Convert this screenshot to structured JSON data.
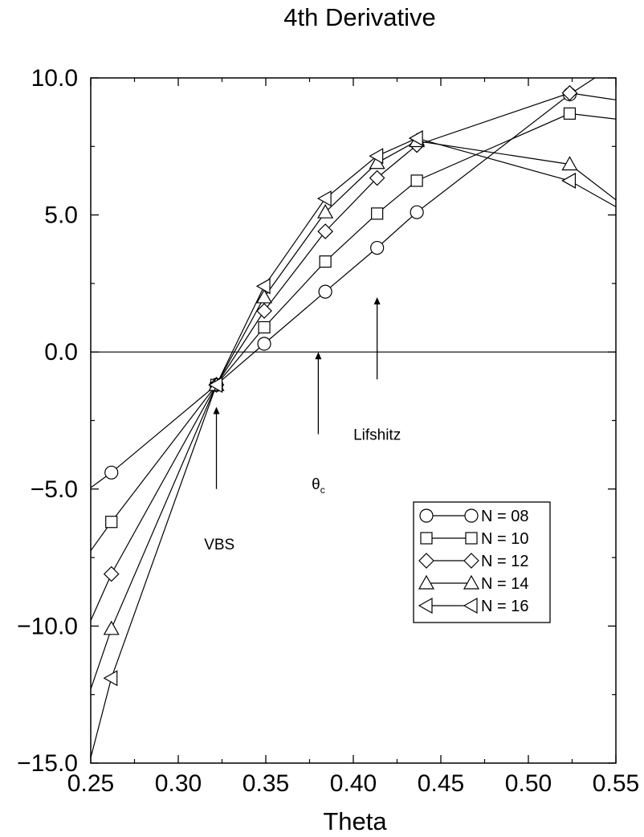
{
  "chart_data": {
    "type": "line",
    "title": "4th Derivative",
    "xlabel": "Theta",
    "ylabel": "",
    "xlim": [
      0.25,
      0.55
    ],
    "ylim": [
      -15.0,
      10.0
    ],
    "xticks": [
      0.25,
      0.3,
      0.35,
      0.4,
      0.45,
      0.5,
      0.55
    ],
    "xtick_labels": [
      "0.25",
      "0.30",
      "0.35",
      "0.40",
      "0.45",
      "0.50",
      "0.55"
    ],
    "yticks": [
      -15.0,
      -10.0,
      -5.0,
      0.0,
      5.0,
      10.0
    ],
    "ytick_labels": [
      "−15.0",
      "−10.0",
      "−5.0",
      "0.0",
      "5.0",
      "10.0"
    ],
    "grid": false,
    "legend_position": "right",
    "reference_line_y": 0.0,
    "series": [
      {
        "name": "N = 08",
        "marker": "circle",
        "x": [
          0.2618,
          0.3218,
          0.3491,
          0.384,
          0.4136,
          0.4363,
          0.5236
        ],
        "y": [
          -4.4,
          -1.2,
          0.3,
          2.2,
          3.8,
          5.1,
          9.4
        ],
        "line_extends_to": [
          [
            0.25,
            -4.95
          ],
          [
            0.55,
            10.5
          ]
        ]
      },
      {
        "name": "N = 10",
        "marker": "square",
        "x": [
          0.2618,
          0.3218,
          0.3491,
          0.384,
          0.4136,
          0.4363,
          0.5236
        ],
        "y": [
          -6.2,
          -1.2,
          0.9,
          3.3,
          5.05,
          6.25,
          8.7
        ],
        "line_extends_to": [
          [
            0.25,
            -7.25
          ],
          [
            0.55,
            8.5
          ]
        ]
      },
      {
        "name": "N = 12",
        "marker": "diamond",
        "x": [
          0.2618,
          0.3218,
          0.3491,
          0.384,
          0.4136,
          0.4363,
          0.5236
        ],
        "y": [
          -8.1,
          -1.2,
          1.5,
          4.4,
          6.35,
          7.55,
          9.45
        ],
        "line_extends_to": [
          [
            0.25,
            -9.8
          ],
          [
            0.55,
            9.2
          ]
        ]
      },
      {
        "name": "N = 14",
        "marker": "triangle-up",
        "x": [
          0.2618,
          0.3218,
          0.3491,
          0.384,
          0.4136,
          0.4363,
          0.5236
        ],
        "y": [
          -10.1,
          -1.2,
          2.0,
          5.1,
          6.9,
          7.7,
          6.85
        ],
        "line_extends_to": [
          [
            0.25,
            -12.3
          ],
          [
            0.55,
            5.55
          ]
        ]
      },
      {
        "name": "N = 16",
        "marker": "triangle-left",
        "x": [
          0.2618,
          0.3218,
          0.3491,
          0.384,
          0.4136,
          0.4363,
          0.5236
        ],
        "y": [
          -11.9,
          -1.2,
          2.4,
          5.6,
          7.15,
          7.8,
          6.25
        ],
        "line_extends_to": [
          [
            0.25,
            -14.8
          ],
          [
            0.55,
            5.3
          ]
        ]
      }
    ],
    "annotations": [
      {
        "id": "vbs",
        "text": "VBS",
        "arrow_x": 0.3218,
        "arrow_from_y": -5.0,
        "arrow_to_y": -2.0,
        "text_x": 0.3235,
        "text_y": -7.2
      },
      {
        "id": "theta-c",
        "text": "θ",
        "subscript": "c",
        "arrow_x": 0.38,
        "arrow_from_y": -3.0,
        "arrow_to_y": 0.0,
        "text_x": 0.38,
        "text_y": -5.0
      },
      {
        "id": "lifshitz",
        "text": "Lifshitz",
        "arrow_x": 0.4136,
        "arrow_from_y": -1.0,
        "arrow_to_y": 2.0,
        "text_x": 0.4136,
        "text_y": -3.2
      }
    ]
  }
}
